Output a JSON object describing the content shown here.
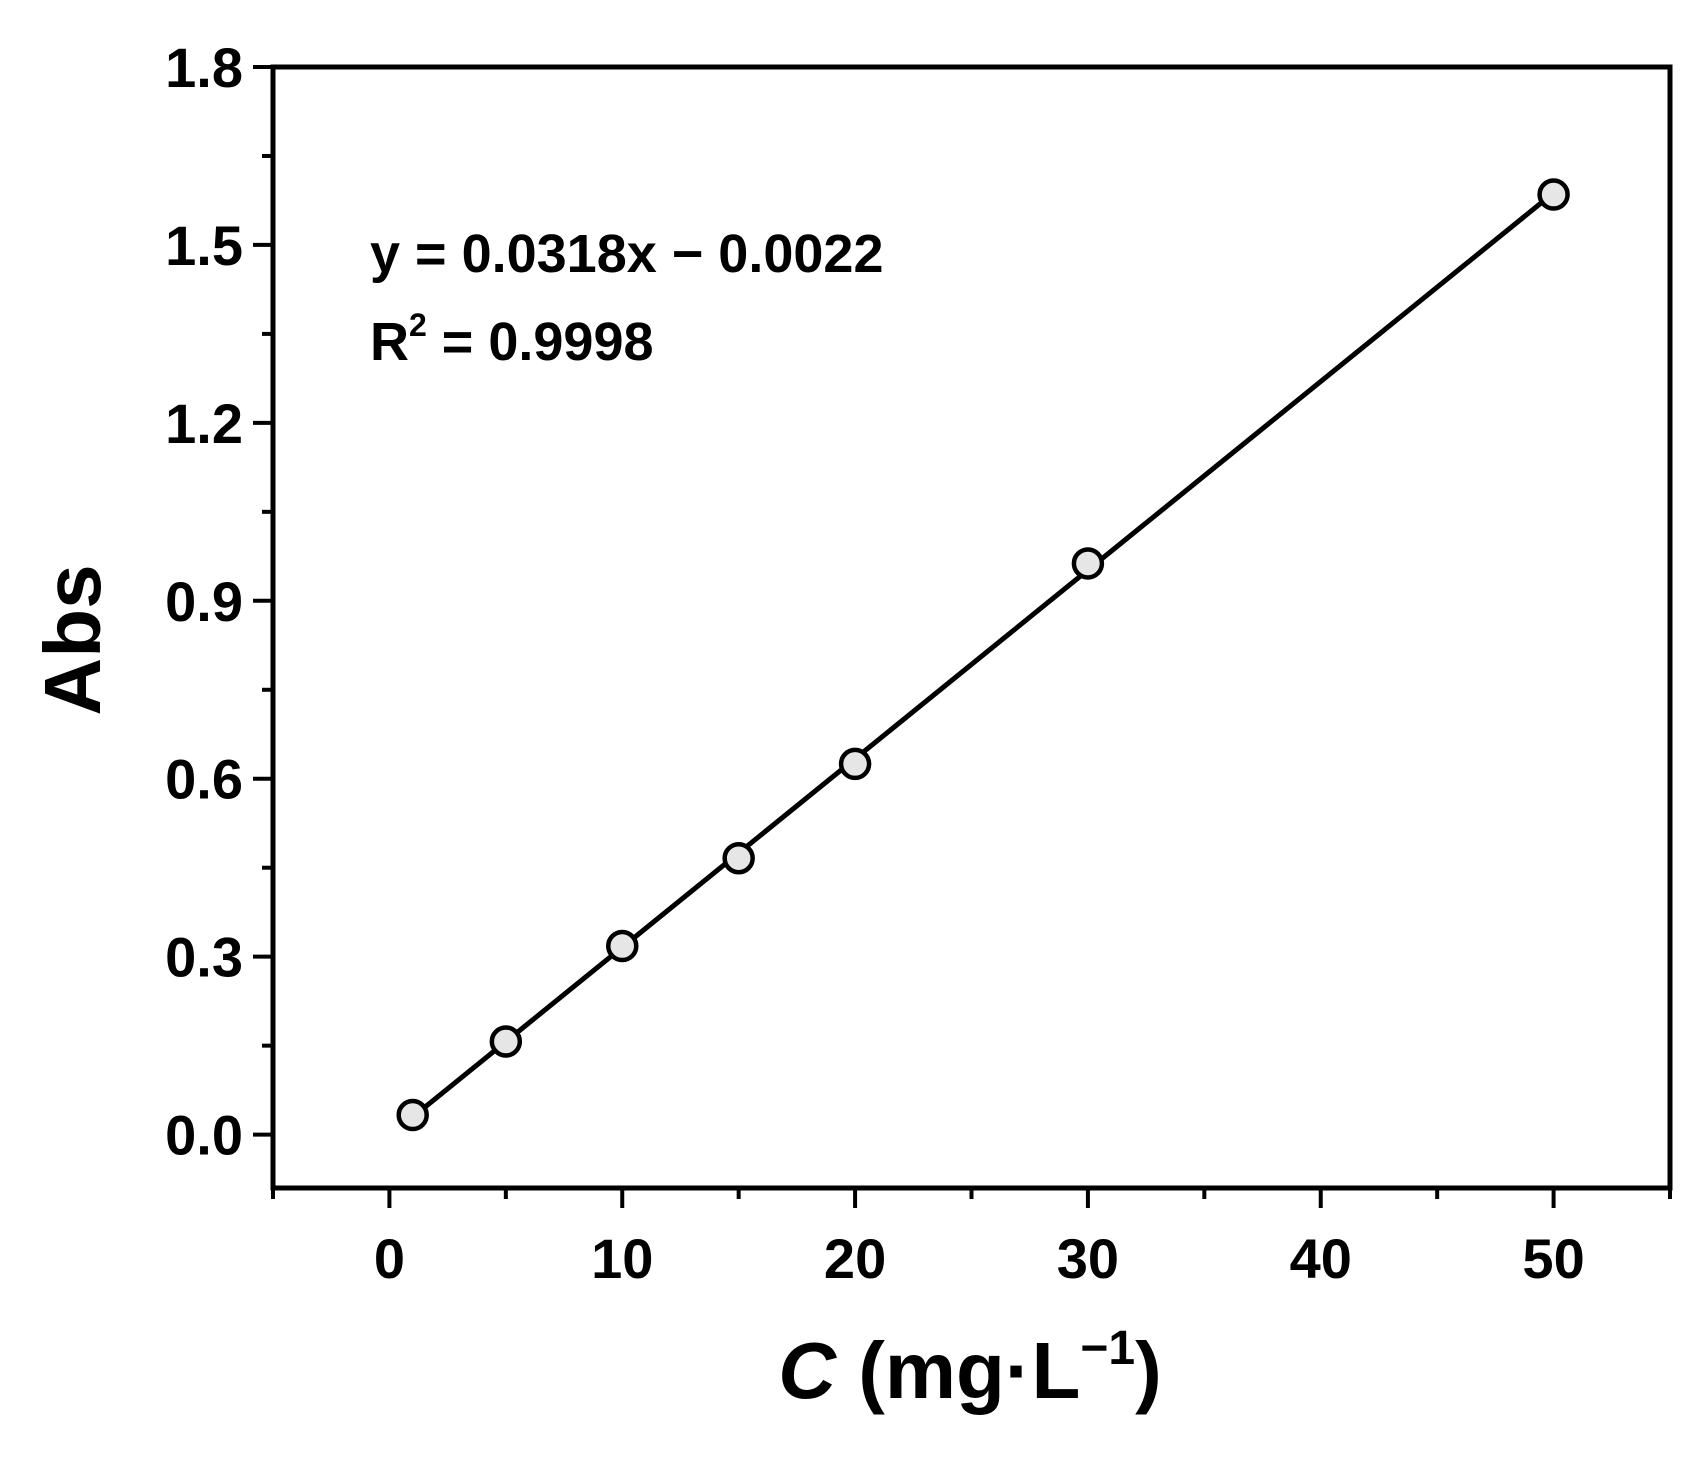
{
  "chart_data": {
    "type": "scatter",
    "title": "",
    "xlabel": {
      "italic_symbol": "C",
      "units_prefix": " (mg·L",
      "superscript": "−1",
      "units_suffix": ")"
    },
    "ylabel": "Abs",
    "xlim": [
      -5,
      55
    ],
    "ylim": [
      -0.09,
      1.8
    ],
    "xticks": [
      0,
      10,
      20,
      30,
      40,
      50
    ],
    "xtick_labels": [
      "0",
      "10",
      "20",
      "30",
      "40",
      "50"
    ],
    "xminor_ticks": [
      -5,
      5,
      15,
      25,
      35,
      45,
      55
    ],
    "yticks": [
      0.0,
      0.3,
      0.6,
      0.9,
      1.2,
      1.5,
      1.8
    ],
    "ytick_labels": [
      "0.0",
      "0.3",
      "0.6",
      "0.9",
      "1.2",
      "1.5",
      "1.8"
    ],
    "yminor_ticks": [
      0.15,
      0.45,
      0.75,
      1.05,
      1.35,
      1.65
    ],
    "grid": false,
    "legend": "none",
    "series": [
      {
        "x": [
          1,
          5,
          10,
          15,
          20,
          30,
          50
        ],
        "y": [
          0.033,
          0.157,
          0.318,
          0.466,
          0.625,
          0.963,
          1.585
        ],
        "marker": "open-circle",
        "marker_fill": "#e6e6e6",
        "color": "#000000"
      }
    ],
    "fit_line": {
      "slope": 0.0318,
      "intercept": -0.0022,
      "x_range": [
        1,
        50
      ],
      "color": "#000000"
    },
    "annotations": {
      "equation": "y = 0.0318x − 0.0022",
      "r2_prefix": "R",
      "r2_superscript": "2",
      "r2_suffix": " = 0.9998"
    }
  }
}
